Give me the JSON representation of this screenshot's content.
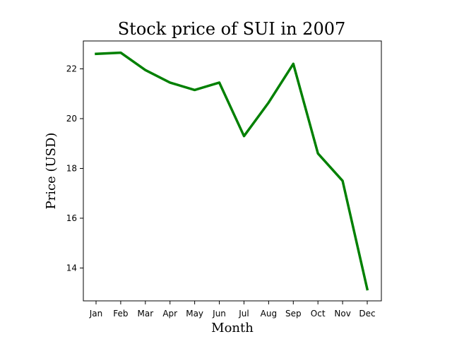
{
  "chart_data": {
    "type": "line",
    "title": "Stock price of SUI in 2007",
    "xlabel": "Month",
    "ylabel": "Price (USD)",
    "categories": [
      "Jan",
      "Feb",
      "Mar",
      "Apr",
      "May",
      "Jun",
      "Jul",
      "Aug",
      "Sep",
      "Oct",
      "Nov",
      "Dec"
    ],
    "series": [
      {
        "values": [
          22.6,
          22.65,
          21.95,
          21.45,
          21.15,
          21.45,
          19.3,
          20.65,
          22.2,
          18.6,
          17.5,
          13.15
        ],
        "color": "#008000"
      }
    ],
    "yticks": [
      14,
      16,
      18,
      20,
      22
    ],
    "ylim": [
      12.68,
      23.12
    ],
    "grid": false,
    "legend": false
  }
}
